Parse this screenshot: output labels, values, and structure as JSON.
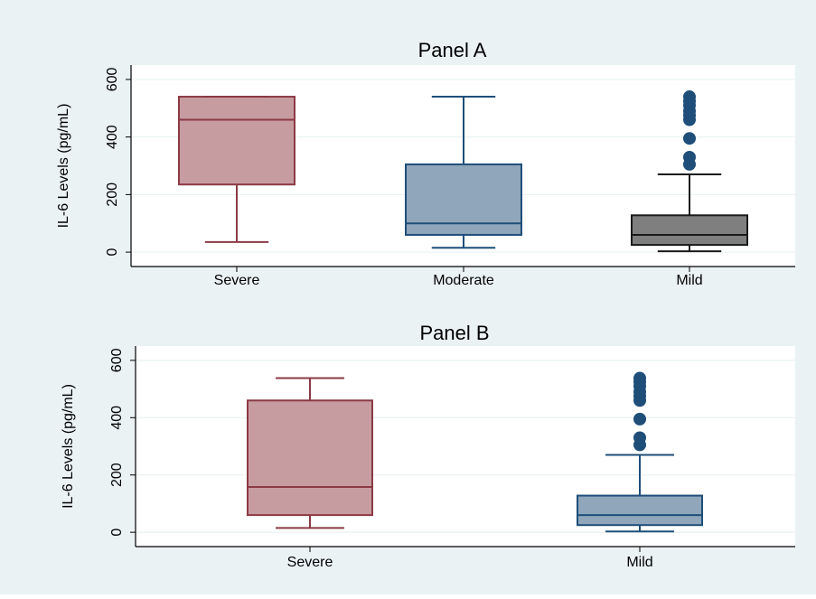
{
  "chart_data": [
    {
      "type": "box",
      "title": "Panel A",
      "ylabel": "IL-6 Levels (pg/mL)",
      "xlabel": "",
      "ylim": [
        -50,
        650
      ],
      "yticks": [
        0,
        200,
        400,
        600
      ],
      "grid": true,
      "categories": [
        "Severe",
        "Moderate",
        "Mild"
      ],
      "boxes": [
        {
          "name": "Severe",
          "min": 35,
          "q1": 235,
          "median": 460,
          "q3": 540,
          "max": 540,
          "outliers": [],
          "fill": "#c79ca0",
          "stroke": "#8b3a45"
        },
        {
          "name": "Moderate",
          "min": 15,
          "q1": 60,
          "median": 100,
          "q3": 305,
          "max": 540,
          "outliers": [],
          "fill": "#8fa6bb",
          "stroke": "#1f4e79"
        },
        {
          "name": "Mild",
          "min": 3,
          "q1": 25,
          "median": 60,
          "q3": 128,
          "max": 270,
          "outliers": [
            305,
            330,
            395,
            460,
            475,
            490,
            510,
            525,
            540
          ],
          "fill": "#7f7f7f",
          "stroke": "#1a1a1a"
        }
      ]
    },
    {
      "type": "box",
      "title": "Panel B",
      "ylabel": "IL-6 Levels (pg/mL)",
      "xlabel": "",
      "ylim": [
        -50,
        650
      ],
      "yticks": [
        0,
        200,
        400,
        600
      ],
      "grid": true,
      "categories": [
        "Severe",
        "Mild"
      ],
      "boxes": [
        {
          "name": "Severe",
          "min": 15,
          "q1": 60,
          "median": 158,
          "q3": 460,
          "max": 538,
          "outliers": [],
          "fill": "#c79ca0",
          "stroke": "#8b3a45"
        },
        {
          "name": "Mild",
          "min": 3,
          "q1": 25,
          "median": 60,
          "q3": 128,
          "max": 270,
          "outliers": [
            305,
            330,
            395,
            460,
            475,
            490,
            510,
            525,
            538
          ],
          "fill": "#8fa6bb",
          "stroke": "#1f4e79"
        }
      ]
    }
  ],
  "colors": {
    "outer_background": "#eaf2f3",
    "plot_background": "#ffffff",
    "grid": "#eaf2f3",
    "outlier_fill": "#1f4e79"
  }
}
